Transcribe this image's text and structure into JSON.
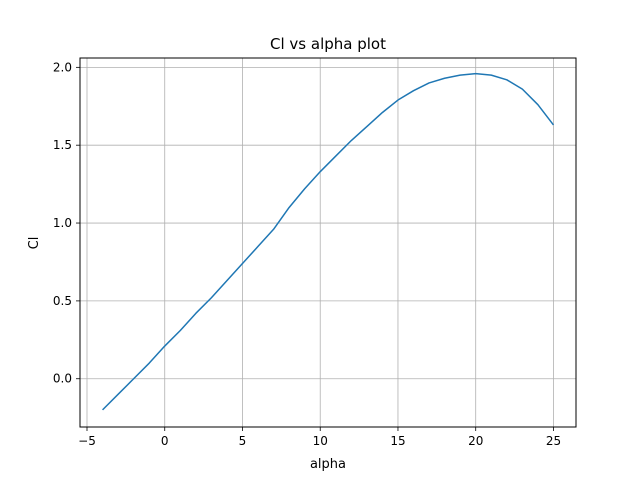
{
  "chart_data": {
    "type": "line",
    "title": "Cl vs alpha plot",
    "xlabel": "alpha",
    "ylabel": "Cl",
    "xlim": [
      -5.45,
      26.45
    ],
    "ylim": [
      -0.31,
      2.06
    ],
    "xticks": [
      -5,
      0,
      5,
      10,
      15,
      20,
      25
    ],
    "yticks": [
      0.0,
      0.5,
      1.0,
      1.5,
      2.0
    ],
    "xtick_labels": [
      "−5",
      "0",
      "5",
      "10",
      "15",
      "20",
      "25"
    ],
    "ytick_labels": [
      "0.0",
      "0.5",
      "1.0",
      "1.5",
      "2.0"
    ],
    "grid": true,
    "series": [
      {
        "color": "#1f77b4",
        "x": [
          -4,
          -3,
          -2,
          -1,
          0,
          1,
          2,
          3,
          4,
          5,
          6,
          7,
          8,
          9,
          10,
          11,
          12,
          13,
          14,
          15,
          16,
          17,
          18,
          19,
          20,
          21,
          22,
          23,
          24,
          25
        ],
        "y": [
          -0.2,
          -0.1,
          0.0,
          0.1,
          0.21,
          0.31,
          0.42,
          0.52,
          0.63,
          0.74,
          0.85,
          0.96,
          1.1,
          1.22,
          1.33,
          1.43,
          1.53,
          1.62,
          1.71,
          1.79,
          1.85,
          1.9,
          1.93,
          1.95,
          1.96,
          1.95,
          1.92,
          1.86,
          1.76,
          1.63
        ]
      }
    ]
  }
}
